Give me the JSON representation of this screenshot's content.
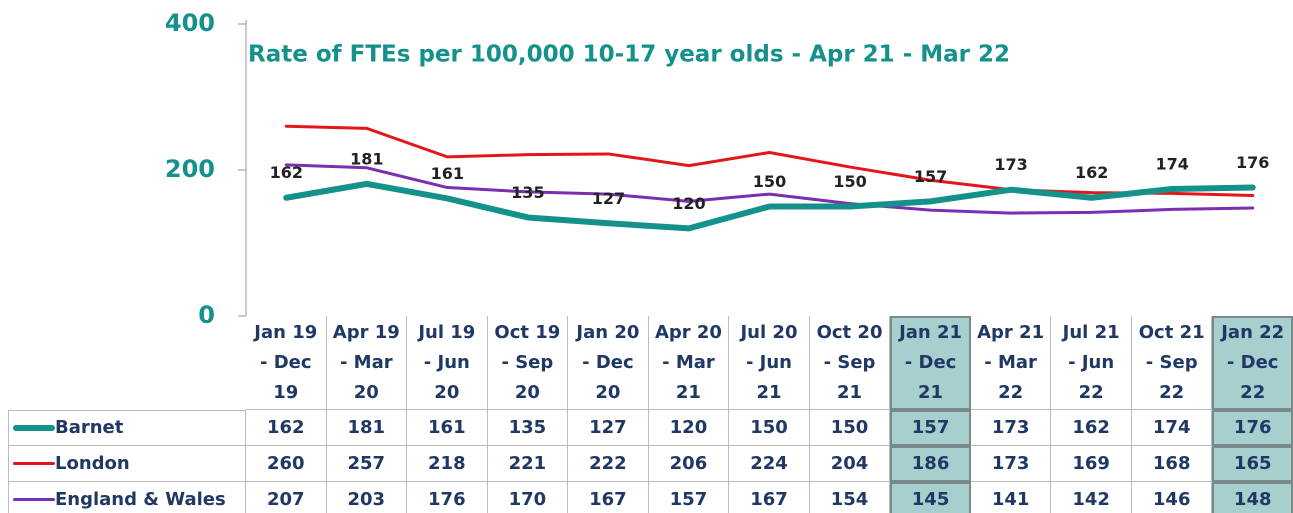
{
  "chart_data": {
    "type": "line",
    "title": "Rate of FTEs per 100,000 10-17 year olds - Apr 21 - Mar 22",
    "categories": [
      "Jan 19\n- Dec\n19",
      "Apr 19\n- Mar\n20",
      "Jul 19\n- Jun\n20",
      "Oct 19\n- Sep\n20",
      "Jan 20\n- Dec\n20",
      "Apr 20\n- Mar\n21",
      "Jul 20\n- Jun\n21",
      "Oct 20\n- Sep\n21",
      "Jan 21\n- Dec\n21",
      "Apr 21\n- Mar\n22",
      "Jul 21\n- Jun\n22",
      "Oct 21\n- Sep\n22",
      "Jan 22\n- Dec\n22"
    ],
    "series": [
      {
        "name": "Barnet",
        "color": "#14918a",
        "values": [
          162,
          181,
          161,
          135,
          127,
          120,
          150,
          150,
          157,
          173,
          162,
          174,
          176
        ]
      },
      {
        "name": "London",
        "color": "#e3171b",
        "values": [
          260,
          257,
          218,
          221,
          222,
          206,
          224,
          204,
          186,
          173,
          169,
          168,
          165
        ]
      },
      {
        "name": "England & Wales",
        "color": "#7a2fb0",
        "values": [
          207,
          203,
          176,
          170,
          167,
          157,
          167,
          154,
          145,
          141,
          142,
          146,
          148
        ]
      }
    ],
    "data_labels_series": 0,
    "highlight_categories": [
      8,
      12
    ],
    "ylim": [
      0,
      400
    ],
    "yticks": [
      0,
      200,
      400
    ],
    "grid": false
  }
}
